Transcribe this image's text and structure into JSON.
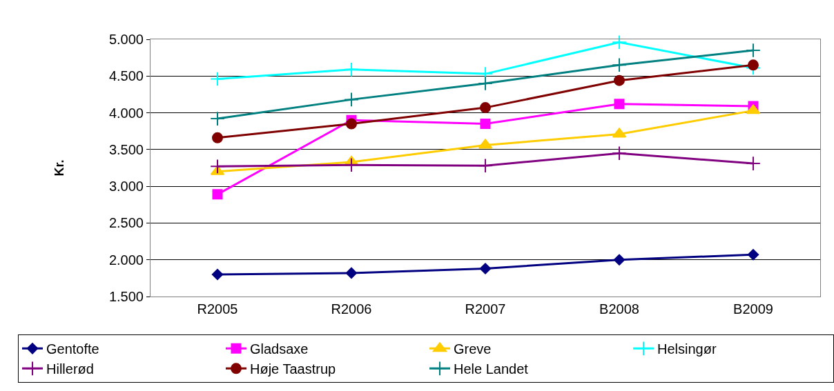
{
  "chart_data": {
    "type": "line",
    "ylabel": "Kr.",
    "categories": [
      "R2005",
      "R2006",
      "R2007",
      "B2008",
      "B2009"
    ],
    "series": [
      {
        "name": "Gentofte",
        "color": "#000080",
        "marker": "diamond",
        "values": [
          1800,
          1820,
          1880,
          2000,
          2070
        ]
      },
      {
        "name": "Gladsaxe",
        "color": "#ff00ff",
        "marker": "square",
        "values": [
          2890,
          3900,
          3850,
          4120,
          4090
        ]
      },
      {
        "name": "Greve",
        "color": "#ffcc00",
        "marker": "triangle",
        "values": [
          3200,
          3330,
          3560,
          3710,
          4030
        ]
      },
      {
        "name": "Helsingør",
        "color": "#00ffff",
        "marker": "cross",
        "values": [
          4460,
          4590,
          4530,
          4960,
          4610
        ]
      },
      {
        "name": "Hillerød",
        "color": "#800080",
        "marker": "cross",
        "values": [
          3270,
          3290,
          3280,
          3450,
          3310
        ]
      },
      {
        "name": "Høje Taastrup",
        "color": "#800000",
        "marker": "circle",
        "values": [
          3660,
          3850,
          4070,
          4440,
          4650
        ]
      },
      {
        "name": "Hele Landet",
        "color": "#008080",
        "marker": "cross",
        "values": [
          3920,
          4180,
          4400,
          4650,
          4850
        ]
      }
    ],
    "ylim": [
      1500,
      5000
    ],
    "yticks": [
      {
        "value": 1500,
        "label": "1.500"
      },
      {
        "value": 2000,
        "label": "2.000"
      },
      {
        "value": 2500,
        "label": "2.500"
      },
      {
        "value": 3000,
        "label": "3.000"
      },
      {
        "value": 3500,
        "label": "3.500"
      },
      {
        "value": 4000,
        "label": "4.000"
      },
      {
        "value": 4500,
        "label": "4.500"
      },
      {
        "value": 5000,
        "label": "5.000"
      }
    ],
    "grid": "y",
    "legend": "bottom",
    "line_style": "solid"
  }
}
